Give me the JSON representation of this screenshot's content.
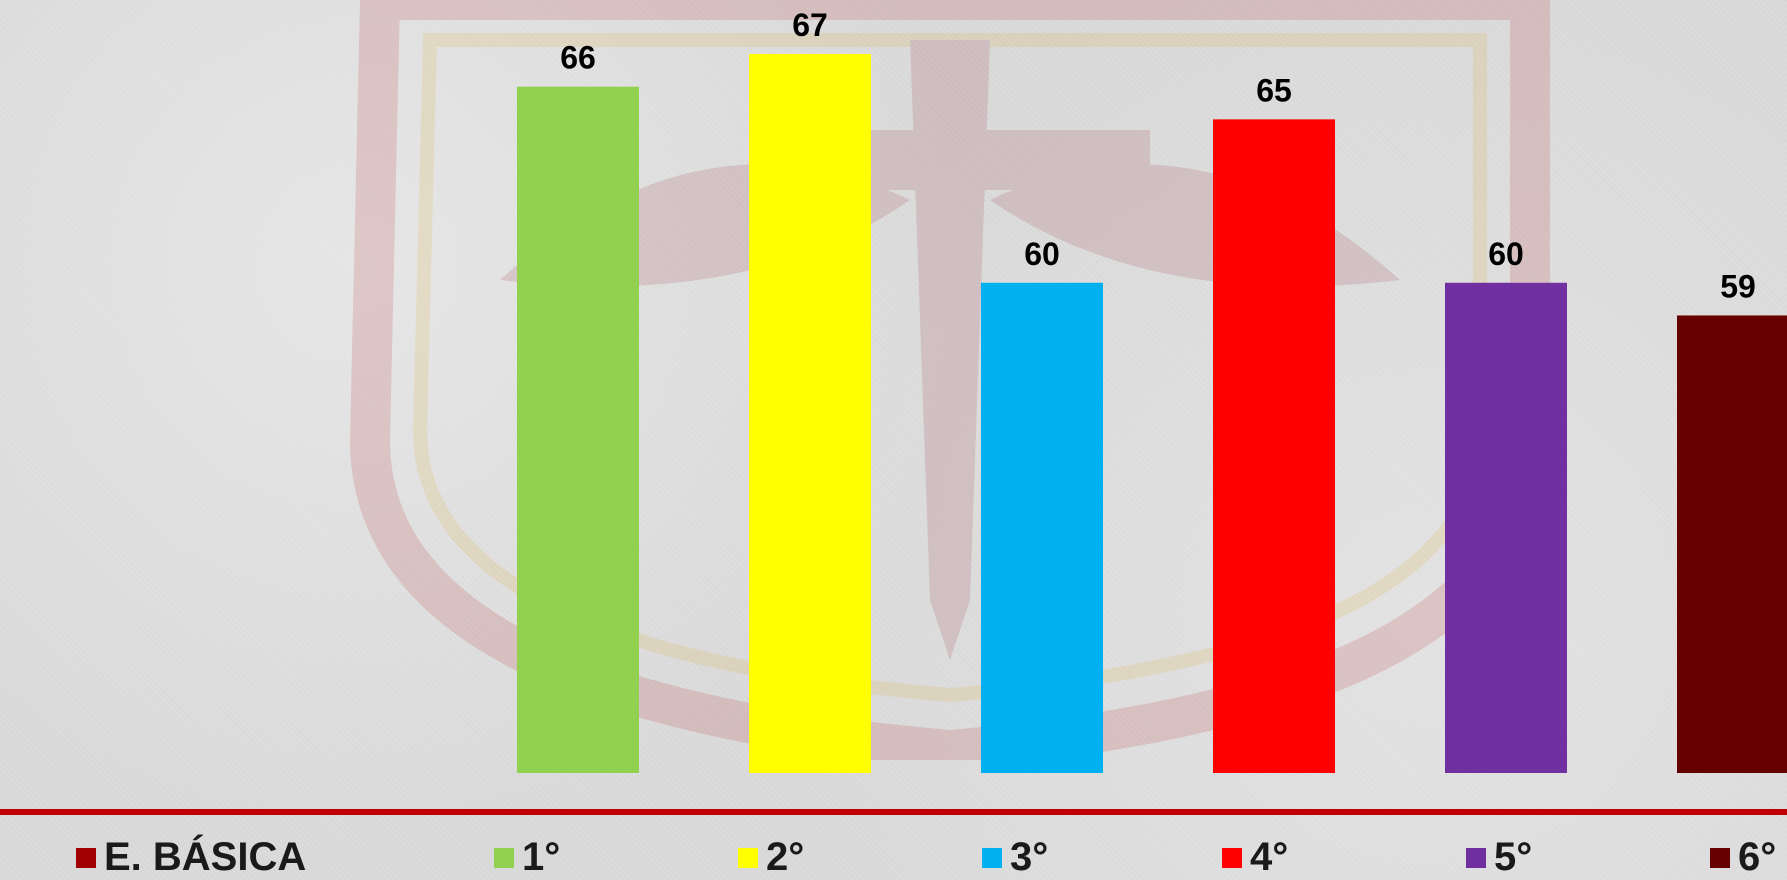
{
  "chart_data": {
    "type": "bar",
    "title": "",
    "xlabel": "",
    "ylabel": "",
    "categories": [
      "1°",
      "2°",
      "3°",
      "4°",
      "5°",
      "6°"
    ],
    "values": [
      66,
      67,
      60,
      65,
      60,
      59
    ],
    "colors": [
      "#92d050",
      "#ffff00",
      "#00b0f0",
      "#ff0000",
      "#7030a0",
      "#660000"
    ],
    "ylim": [
      45,
      68
    ],
    "grid": false,
    "legend_position": "bottom",
    "legend": [
      {
        "label": "E. BÁSICA",
        "color": "#a00000"
      },
      {
        "label": "1°",
        "color": "#92d050"
      },
      {
        "label": "2°",
        "color": "#ffff00"
      },
      {
        "label": "3°",
        "color": "#00b0f0"
      },
      {
        "label": "4°",
        "color": "#ff0000"
      },
      {
        "label": "5°",
        "color": "#7030a0"
      },
      {
        "label": "6°",
        "color": "#660000"
      }
    ]
  },
  "theme": {
    "baseline_color": "#c00000",
    "watermark_color": "#b00000"
  }
}
